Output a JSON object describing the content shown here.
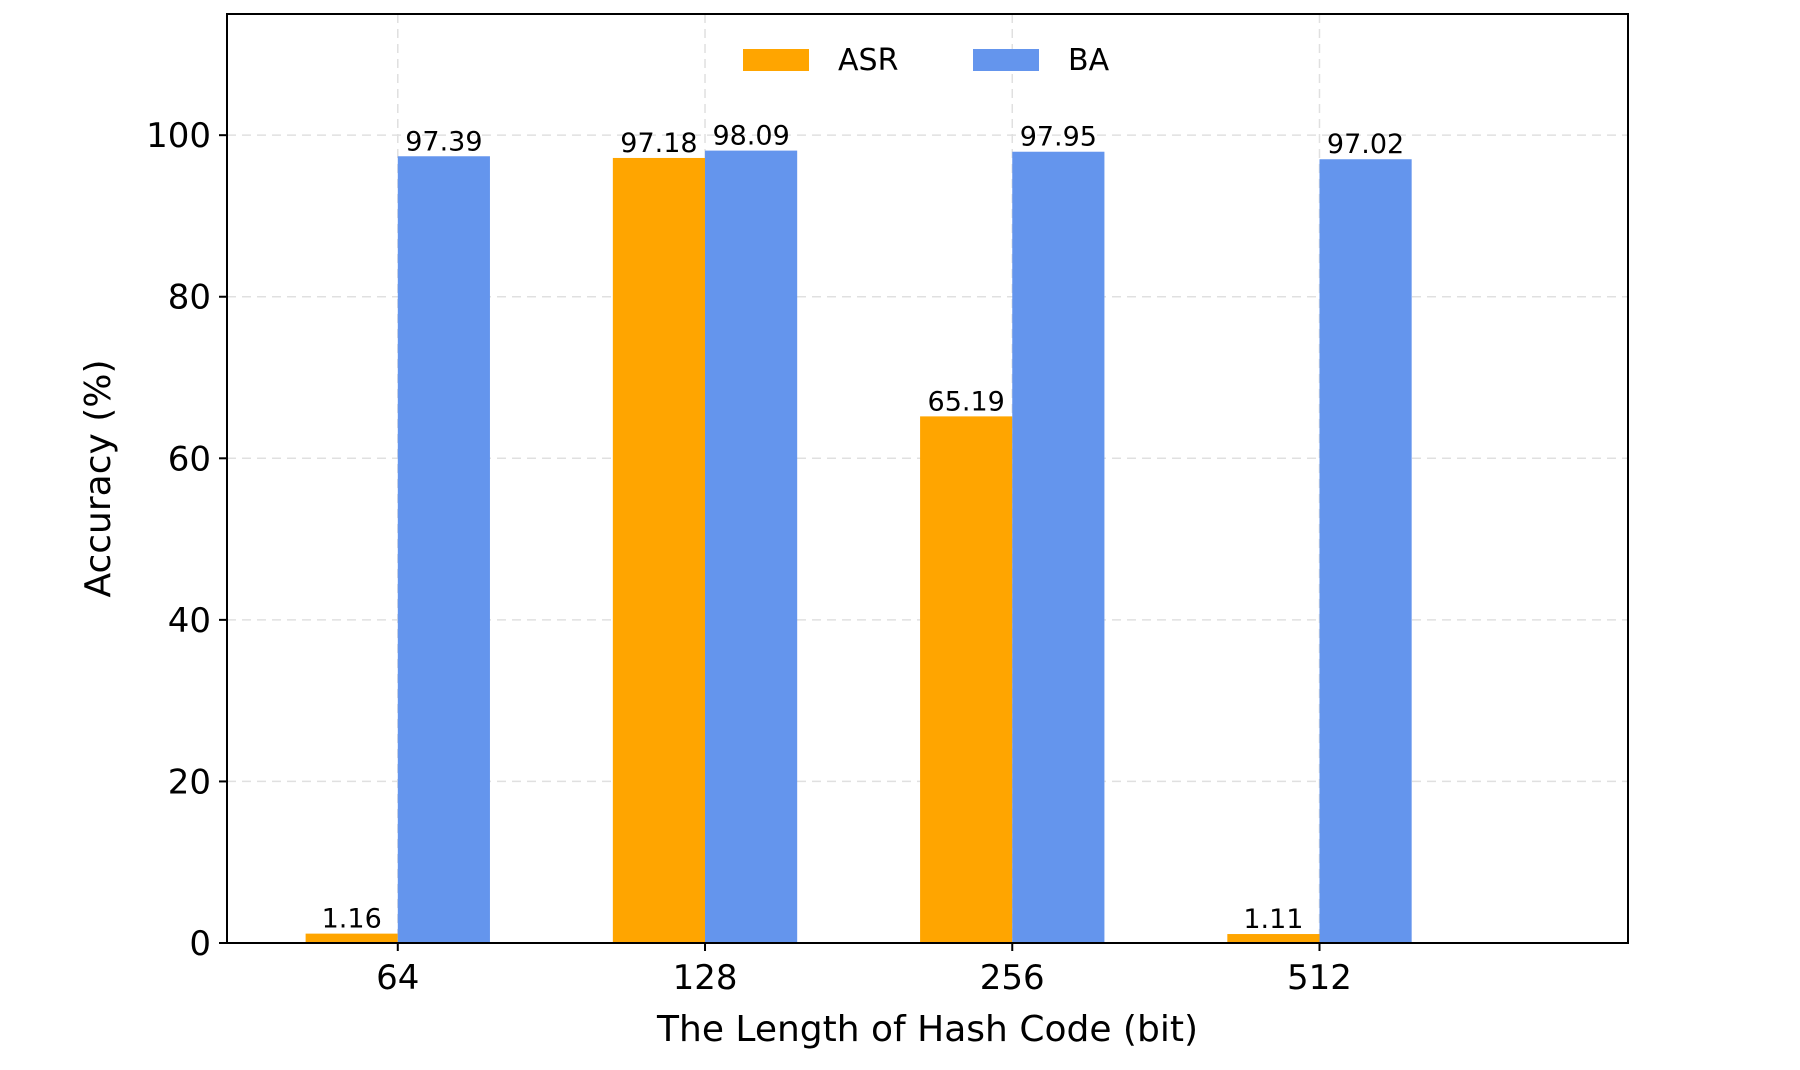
{
  "chart_data": {
    "type": "bar",
    "title": "",
    "xlabel": "The Length of Hash Code (bit)",
    "ylabel": "Accuracy (%)",
    "categories": [
      "64",
      "128",
      "256",
      "512"
    ],
    "series": [
      {
        "name": "ASR",
        "color": "#FFA500",
        "values": [
          1.16,
          97.18,
          65.19,
          1.11
        ],
        "labels": [
          "1.16",
          "97.18",
          "65.19",
          "1.11"
        ]
      },
      {
        "name": "BA",
        "color": "#6495ED",
        "values": [
          97.39,
          98.09,
          97.95,
          97.02
        ],
        "labels": [
          "97.39",
          "98.09",
          "97.95",
          "97.02"
        ]
      }
    ],
    "ylim": [
      0,
      115
    ],
    "yticks": [
      0,
      20,
      40,
      60,
      80,
      100
    ],
    "ytick_labels": [
      "0",
      "20",
      "40",
      "60",
      "80",
      "100"
    ],
    "grid": true,
    "legend_position": "top-center"
  }
}
